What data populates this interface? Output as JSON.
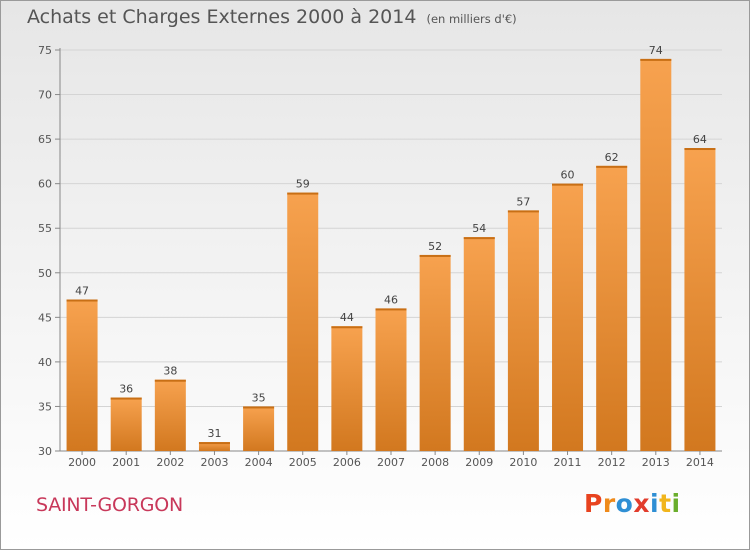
{
  "header": {
    "title": "Achats et Charges Externes 2000 à 2014",
    "unit": "(en milliers d'€)"
  },
  "footer": {
    "commune": "SAINT-GORGON",
    "logo_text": "Proxiti"
  },
  "colors": {
    "bar_light": "#f7a24f",
    "bar_dark": "#d2781f",
    "commune": "#c8385a",
    "logo_letters": [
      "#e8431f",
      "#ef8a1a",
      "#2f8fd4",
      "#e23c2c",
      "#2f8fd4",
      "#f1b51c",
      "#6aae2c"
    ]
  },
  "chart_data": {
    "type": "bar",
    "title": "Achats et Charges Externes 2000 à 2014",
    "subtitle": "(en milliers d'€)",
    "categories": [
      "2000",
      "2001",
      "2002",
      "2003",
      "2004",
      "2005",
      "2006",
      "2007",
      "2008",
      "2009",
      "2010",
      "2011",
      "2012",
      "2013",
      "2014"
    ],
    "values": [
      47,
      36,
      38,
      31,
      35,
      59,
      44,
      46,
      52,
      54,
      57,
      60,
      62,
      74,
      64
    ],
    "xlabel": "",
    "ylabel": "",
    "ylim": [
      30,
      75
    ],
    "yticks": [
      30,
      35,
      40,
      45,
      50,
      55,
      60,
      65,
      70,
      75
    ],
    "grid": "horizontal",
    "data_labels": true
  }
}
